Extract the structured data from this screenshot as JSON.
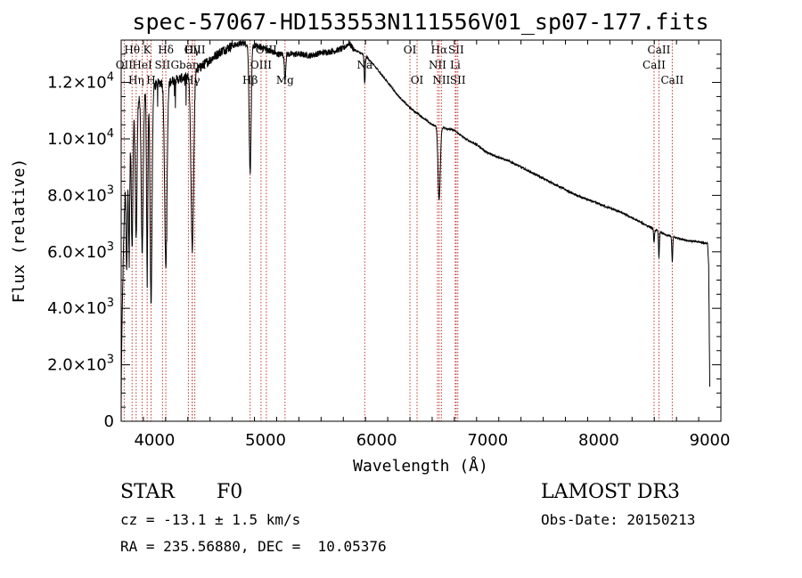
{
  "chart_data": {
    "type": "line",
    "title": "spec-57067-HD153553N111556V01_sp07-177.fits",
    "xlabel": "Wavelength (Å)",
    "ylabel": "Flux (relative)",
    "xlim": [
      3700,
      9100
    ],
    "ylim": [
      0,
      13500
    ],
    "xticks": [
      {
        "value": 4000,
        "label": "4000"
      },
      {
        "value": 5000,
        "label": "5000"
      },
      {
        "value": 6000,
        "label": "6000"
      },
      {
        "value": 7000,
        "label": "7000"
      },
      {
        "value": 8000,
        "label": "8000"
      },
      {
        "value": 9000,
        "label": "9000"
      }
    ],
    "yticks": [
      {
        "value": 0,
        "mant": "0",
        "exp": ""
      },
      {
        "value": 2000,
        "mant": "2.0×10",
        "exp": "3"
      },
      {
        "value": 4000,
        "mant": "4.0×10",
        "exp": "3"
      },
      {
        "value": 6000,
        "mant": "6.0×10",
        "exp": "3"
      },
      {
        "value": 8000,
        "mant": "8.0×10",
        "exp": "3"
      },
      {
        "value": 10000,
        "mant": "1.0×10",
        "exp": "4"
      },
      {
        "value": 12000,
        "mant": "1.2×10",
        "exp": "4"
      }
    ],
    "spectral_lines": [
      {
        "name": "Hθ",
        "wavelength": 3798,
        "row": 0
      },
      {
        "name": "OII",
        "wavelength": 3727,
        "row": 1
      },
      {
        "name": "Hη",
        "wavelength": 3835,
        "row": 2
      },
      {
        "name": "K",
        "wavelength": 3934,
        "row": 0
      },
      {
        "name": "HeI",
        "wavelength": 3889,
        "row": 1
      },
      {
        "name": "H",
        "wavelength": 3969,
        "row": 2
      },
      {
        "name": "Hδ",
        "wavelength": 4102,
        "row": 0
      },
      {
        "name": "SII",
        "wavelength": 4072,
        "row": 1
      },
      {
        "name": "Hγ",
        "wavelength": 4340,
        "row": 0
      },
      {
        "name": "Gband",
        "wavelength": 4305,
        "row": 1
      },
      {
        "name": "Hγ",
        "wavelength": 4340,
        "row": 2
      },
      {
        "name": "OIII",
        "wavelength": 4363,
        "row": 0
      },
      {
        "name": "OIII",
        "wavelength": 5007,
        "row": 0
      },
      {
        "name": "OIII",
        "wavelength": 4959,
        "row": 1
      },
      {
        "name": "Hβ",
        "wavelength": 4861,
        "row": 2
      },
      {
        "name": "Mg",
        "wavelength": 5175,
        "row": 2
      },
      {
        "name": "Na",
        "wavelength": 5893,
        "row": 1
      },
      {
        "name": "OI",
        "wavelength": 6300,
        "row": 0
      },
      {
        "name": "OI",
        "wavelength": 6364,
        "row": 2
      },
      {
        "name": "Hα",
        "wavelength": 6563,
        "row": 0
      },
      {
        "name": "NII",
        "wavelength": 6548,
        "row": 1
      },
      {
        "name": "NII",
        "wavelength": 6583,
        "row": 2
      },
      {
        "name": "SII",
        "wavelength": 6716,
        "row": 0
      },
      {
        "name": "Li",
        "wavelength": 6708,
        "row": 1
      },
      {
        "name": "SII",
        "wavelength": 6731,
        "row": 2
      },
      {
        "name": "CaII",
        "wavelength": 8542,
        "row": 0
      },
      {
        "name": "CaII",
        "wavelength": 8498,
        "row": 1
      },
      {
        "name": "CaII",
        "wavelength": 8662,
        "row": 2
      }
    ],
    "continuum": [
      [
        3700,
        500
      ],
      [
        3705,
        2800
      ],
      [
        3720,
        6000
      ],
      [
        3740,
        8800
      ],
      [
        3760,
        10200
      ],
      [
        3800,
        10800
      ],
      [
        3850,
        11500
      ],
      [
        3900,
        11600
      ],
      [
        3950,
        11800
      ],
      [
        4000,
        11900
      ],
      [
        4050,
        12000
      ],
      [
        4100,
        12000
      ],
      [
        4200,
        12100
      ],
      [
        4300,
        12200
      ],
      [
        4400,
        12500
      ],
      [
        4500,
        12800
      ],
      [
        4600,
        13100
      ],
      [
        4700,
        13300
      ],
      [
        4800,
        13400
      ],
      [
        4900,
        13300
      ],
      [
        5000,
        13200
      ],
      [
        5100,
        13000
      ],
      [
        5200,
        13000
      ],
      [
        5300,
        13000
      ],
      [
        5400,
        12950
      ],
      [
        5500,
        13050
      ],
      [
        5600,
        13100
      ],
      [
        5700,
        13200
      ],
      [
        5750,
        13400
      ],
      [
        5800,
        13150
      ],
      [
        5900,
        12950
      ],
      [
        6000,
        12500
      ],
      [
        6100,
        12000
      ],
      [
        6200,
        11500
      ],
      [
        6300,
        11100
      ],
      [
        6400,
        10800
      ],
      [
        6500,
        10500
      ],
      [
        6600,
        10400
      ],
      [
        6700,
        10300
      ],
      [
        6800,
        10000
      ],
      [
        6900,
        9800
      ],
      [
        7000,
        9500
      ],
      [
        7200,
        9200
      ],
      [
        7400,
        8800
      ],
      [
        7600,
        8400
      ],
      [
        7800,
        8000
      ],
      [
        8000,
        7700
      ],
      [
        8200,
        7400
      ],
      [
        8400,
        7000
      ],
      [
        8500,
        6800
      ],
      [
        8600,
        6600
      ],
      [
        8700,
        6500
      ],
      [
        8800,
        6400
      ],
      [
        8900,
        6350
      ],
      [
        8980,
        6300
      ],
      [
        8990,
        5500
      ],
      [
        9000,
        1200
      ]
    ],
    "absorption": [
      {
        "center": 3750,
        "depth": 4200,
        "width": 6
      },
      {
        "center": 3771,
        "depth": 4400,
        "width": 6
      },
      {
        "center": 3798,
        "depth": 4600,
        "width": 7
      },
      {
        "center": 3835,
        "depth": 4800,
        "width": 8
      },
      {
        "center": 3889,
        "depth": 5500,
        "width": 9
      },
      {
        "center": 3934,
        "depth": 6300,
        "width": 6
      },
      {
        "center": 3969,
        "depth": 7600,
        "width": 9
      },
      {
        "center": 4102,
        "depth": 6500,
        "width": 11
      },
      {
        "center": 4340,
        "depth": 6200,
        "width": 12
      },
      {
        "center": 4861,
        "depth": 4500,
        "width": 9
      },
      {
        "center": 5175,
        "depth": 900,
        "width": 6
      },
      {
        "center": 5893,
        "depth": 1000,
        "width": 5
      },
      {
        "center": 6563,
        "depth": 2600,
        "width": 10
      },
      {
        "center": 8498,
        "depth": 500,
        "width": 4
      },
      {
        "center": 8542,
        "depth": 900,
        "width": 4
      },
      {
        "center": 8662,
        "depth": 900,
        "width": 4
      }
    ]
  },
  "info": {
    "object_class": "STAR",
    "subclass": "F0",
    "redshift": "cz = -13.1 ± 1.5 km/s",
    "coords": "RA = 235.56880, DEC =  10.05376",
    "survey": "LAMOST DR3",
    "obs_date": "Obs-Date: 20150213"
  },
  "colors": {
    "line_marker": "#c0392b",
    "spectrum": "#000000",
    "axes": "#000000"
  }
}
